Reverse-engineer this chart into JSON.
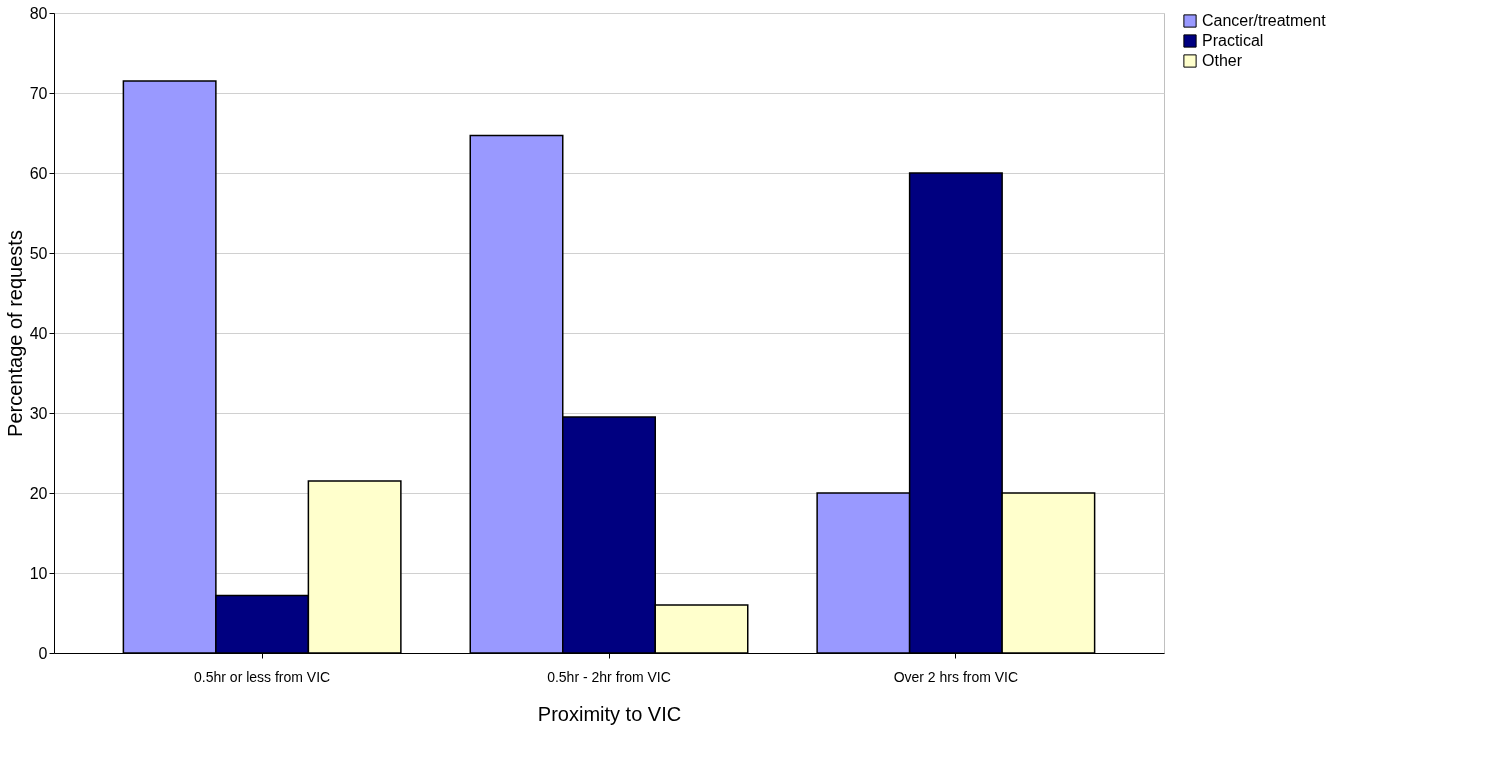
{
  "chart_data": {
    "type": "bar",
    "xlabel": "Proximity to VIC",
    "ylabel": "Percentage of requests",
    "categories": [
      "0.5hr or less from VIC",
      "0.5hr - 2hr from VIC",
      "Over 2 hrs from VIC"
    ],
    "series": [
      {
        "name": "Cancer/treatment",
        "color": "#9999ff",
        "values": [
          71.5,
          64.7,
          20
        ]
      },
      {
        "name": "Practical",
        "color": "#000080",
        "values": [
          7.2,
          29.5,
          60
        ]
      },
      {
        "name": "Other",
        "color": "#ffffcc",
        "values": [
          21.5,
          6.0,
          20
        ]
      }
    ],
    "ylim": [
      0,
      80
    ],
    "yticks": [
      0,
      10,
      20,
      30,
      40,
      50,
      60,
      70,
      80
    ],
    "grid": "y",
    "legend": "right"
  }
}
